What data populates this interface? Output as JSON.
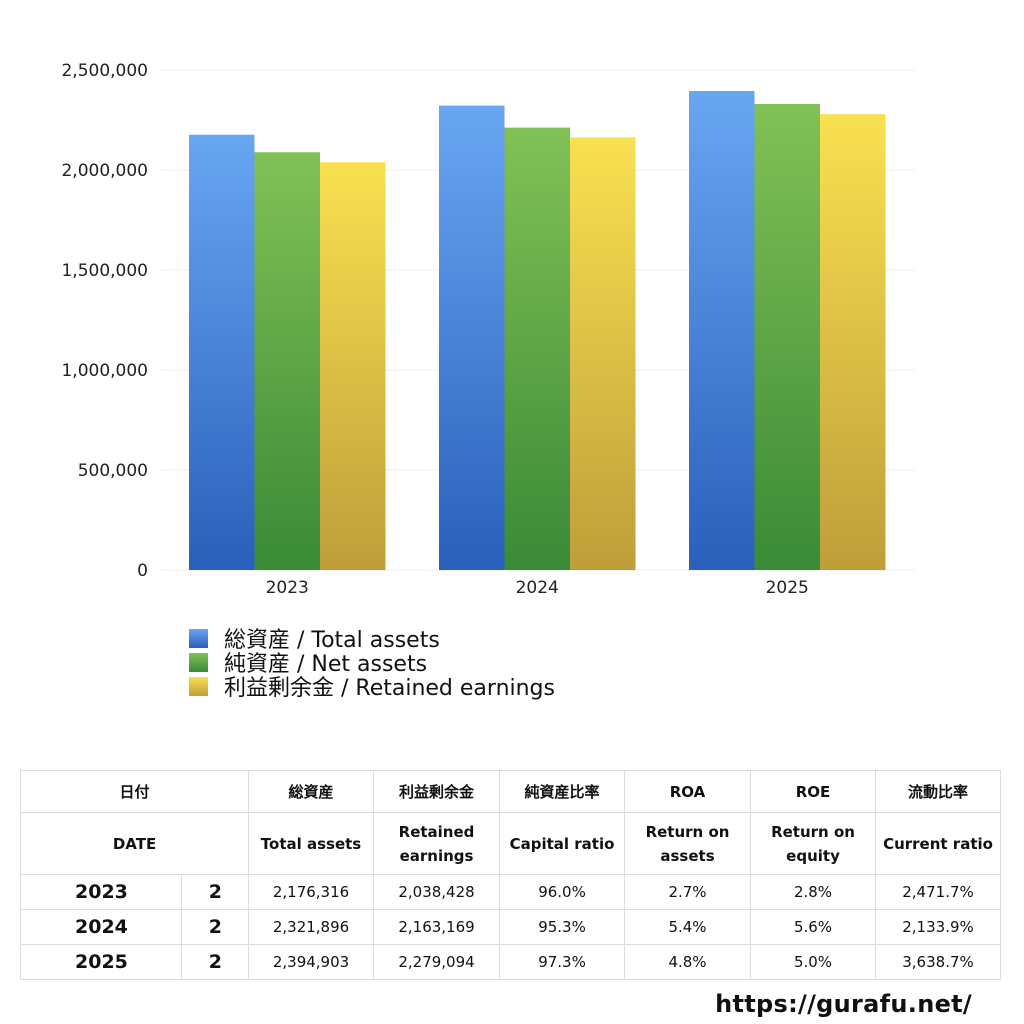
{
  "chart_data": {
    "type": "bar",
    "categories": [
      "2023",
      "2024",
      "2025"
    ],
    "series": [
      {
        "name": "総資産 / Total assets",
        "values": [
          2176316,
          2321896,
          2394903
        ]
      },
      {
        "name": "純資産 / Net assets",
        "values": [
          2089000,
          2212000,
          2330000
        ]
      },
      {
        "name": "利益剰余金 / Retained earnings",
        "values": [
          2038428,
          2163169,
          2279094
        ]
      }
    ],
    "ylim": [
      0,
      2500000
    ],
    "yticks": [
      0,
      500000,
      1000000,
      1500000,
      2000000,
      2500000
    ],
    "ytick_labels": [
      "0",
      "500,000",
      "1,000,000",
      "1,500,000",
      "2,000,000",
      "2,500,000"
    ],
    "grid": true,
    "legend_position": "bottom-left",
    "colors": {
      "total_assets": [
        "#68a6f2",
        "#2a5fbb"
      ],
      "net_assets": [
        "#82c156",
        "#3a8a37"
      ],
      "retained_earnings": [
        "#f8e150",
        "#bf9e3a"
      ]
    }
  },
  "legend": [
    {
      "label": "総資産 / Total assets",
      "color": "total_assets"
    },
    {
      "label": "純資産 / Net assets",
      "color": "net_assets"
    },
    {
      "label": "利益剰余金 / Retained earnings",
      "color": "retained_earnings"
    }
  ],
  "table": {
    "header_jp": [
      "日付",
      "総資産",
      "利益剰余金",
      "純資産比率",
      "ROA",
      "ROE",
      "流動比率"
    ],
    "header_en": [
      "DATE",
      "Total assets",
      "Retained earnings",
      "Capital ratio",
      "Return on assets",
      "Return on equity",
      "Current ratio"
    ],
    "rows": [
      {
        "year": "2023",
        "num": "2",
        "total_assets": "2,176,316",
        "retained_earnings": "2,038,428",
        "capital_ratio": "96.0%",
        "roa": "2.7%",
        "roe": "2.8%",
        "current_ratio": "2,471.7%"
      },
      {
        "year": "2024",
        "num": "2",
        "total_assets": "2,321,896",
        "retained_earnings": "2,163,169",
        "capital_ratio": "95.3%",
        "roa": "5.4%",
        "roe": "5.6%",
        "current_ratio": "2,133.9%"
      },
      {
        "year": "2025",
        "num": "2",
        "total_assets": "2,394,903",
        "retained_earnings": "2,279,094",
        "capital_ratio": "97.3%",
        "roa": "4.8%",
        "roe": "5.0%",
        "current_ratio": "3,638.7%"
      }
    ]
  },
  "site_url": "https://gurafu.net/"
}
